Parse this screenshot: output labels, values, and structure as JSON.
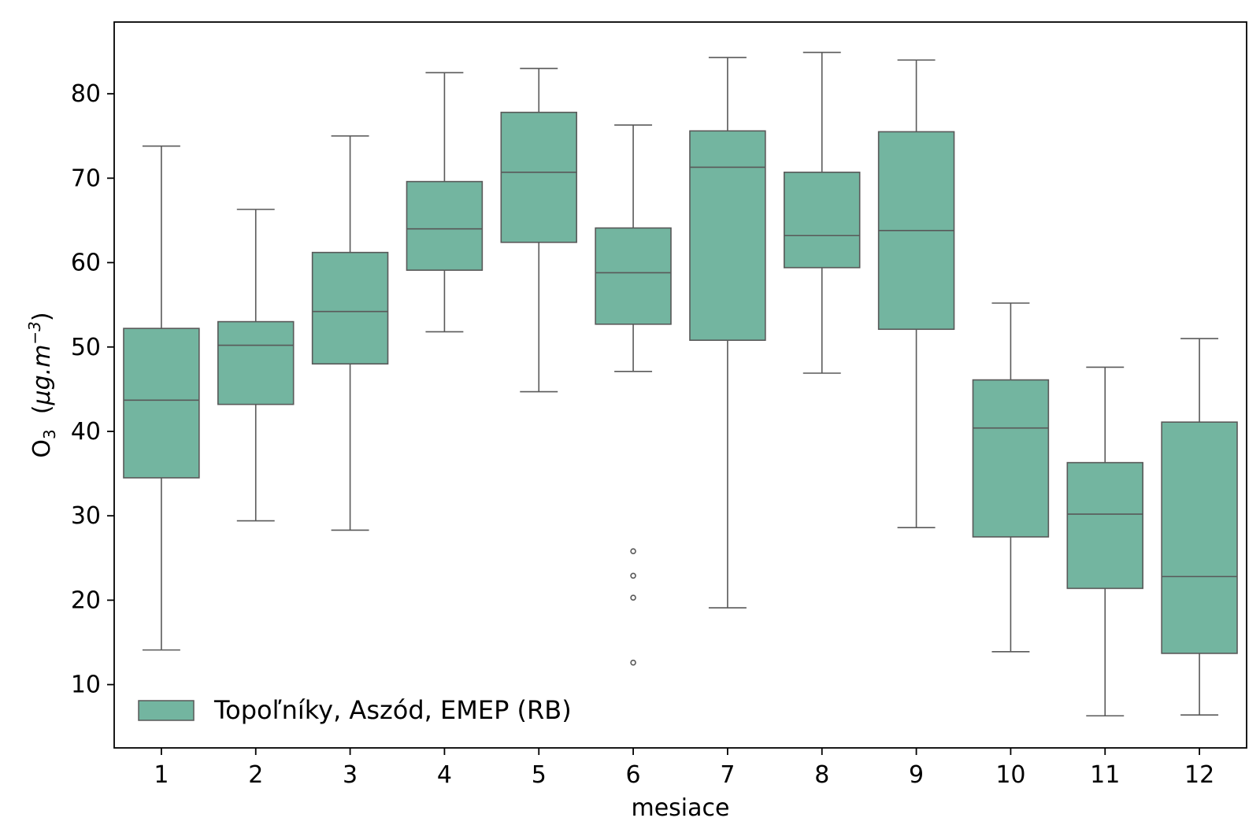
{
  "chart_data": {
    "type": "box",
    "xlabel": "mesiace",
    "ylabel": {
      "base": "O",
      "sub": "3",
      "unit_open": "  (",
      "unit_mu": "μg.m",
      "unit_sup": "−3",
      "unit_close": ")"
    },
    "ylim": [
      2.5,
      88.5
    ],
    "yticks": [
      10,
      20,
      30,
      40,
      50,
      60,
      70,
      80
    ],
    "categories": [
      "1",
      "2",
      "3",
      "4",
      "5",
      "6",
      "7",
      "8",
      "9",
      "10",
      "11",
      "12"
    ],
    "series": [
      {
        "name": "Topoľníky, Aszód, EMEP (RB)",
        "color": "#73b5a0",
        "boxes": [
          {
            "whisker_low": 14.1,
            "q1": 34.5,
            "median": 43.7,
            "q3": 52.2,
            "whisker_high": 73.8,
            "outliers": []
          },
          {
            "whisker_low": 29.4,
            "q1": 43.2,
            "median": 50.2,
            "q3": 53.0,
            "whisker_high": 66.3,
            "outliers": []
          },
          {
            "whisker_low": 28.3,
            "q1": 48.0,
            "median": 54.2,
            "q3": 61.2,
            "whisker_high": 75.0,
            "outliers": []
          },
          {
            "whisker_low": 51.8,
            "q1": 59.1,
            "median": 64.0,
            "q3": 69.6,
            "whisker_high": 82.5,
            "outliers": []
          },
          {
            "whisker_low": 44.7,
            "q1": 62.4,
            "median": 70.7,
            "q3": 77.8,
            "whisker_high": 83.0,
            "outliers": []
          },
          {
            "whisker_low": 47.1,
            "q1": 52.7,
            "median": 58.8,
            "q3": 64.1,
            "whisker_high": 76.3,
            "outliers": [
              25.8,
              22.9,
              20.3,
              12.6
            ]
          },
          {
            "whisker_low": 19.1,
            "q1": 50.8,
            "median": 71.3,
            "q3": 75.6,
            "whisker_high": 84.3,
            "outliers": []
          },
          {
            "whisker_low": 46.9,
            "q1": 59.4,
            "median": 63.2,
            "q3": 70.7,
            "whisker_high": 84.9,
            "outliers": []
          },
          {
            "whisker_low": 28.6,
            "q1": 52.1,
            "median": 63.8,
            "q3": 75.5,
            "whisker_high": 84.0,
            "outliers": []
          },
          {
            "whisker_low": 13.9,
            "q1": 27.5,
            "median": 40.4,
            "q3": 46.1,
            "whisker_high": 55.2,
            "outliers": []
          },
          {
            "whisker_low": 6.3,
            "q1": 21.4,
            "median": 30.2,
            "q3": 36.3,
            "whisker_high": 47.6,
            "outliers": []
          },
          {
            "whisker_low": 6.4,
            "q1": 13.7,
            "median": 22.8,
            "q3": 41.1,
            "whisker_high": 51.0,
            "outliers": []
          }
        ]
      }
    ],
    "legend": {
      "placement": "bottom-left"
    },
    "grid": false,
    "colors": {
      "box_fill": "#73b5a0",
      "line": "#595959",
      "frame": "#000000"
    }
  }
}
